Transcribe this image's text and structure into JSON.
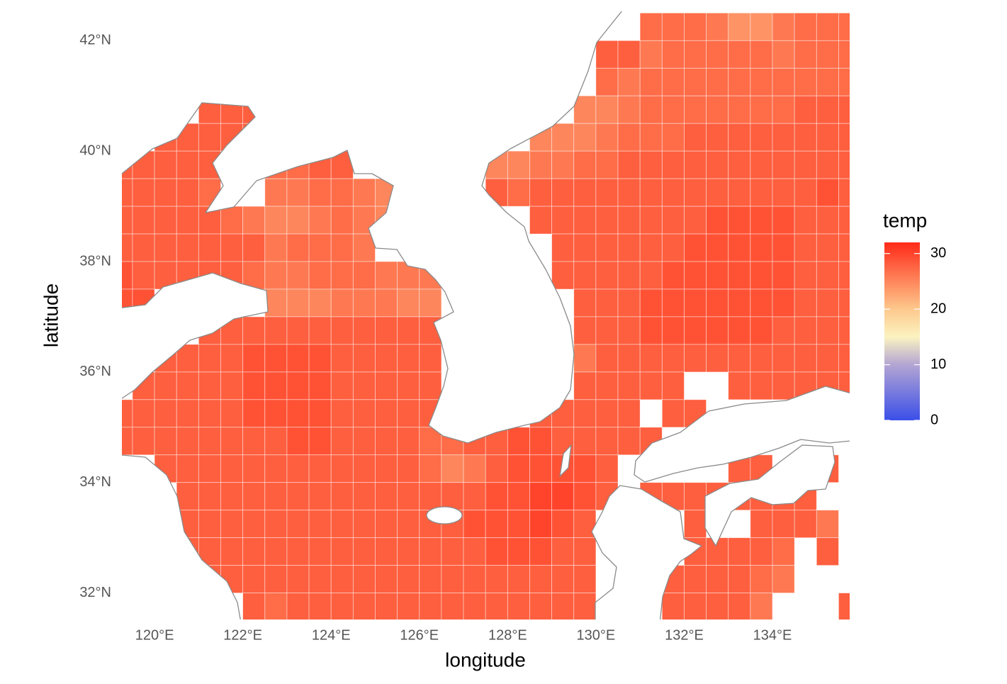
{
  "chart_data": {
    "type": "heatmap",
    "x_label": "longitude",
    "y_label": "latitude",
    "xlim": [
      119.26,
      135.75
    ],
    "ylim": [
      31.52,
      42.53
    ],
    "xticks": [
      {
        "value": 120,
        "label": "120°E"
      },
      {
        "value": 122,
        "label": "122°E"
      },
      {
        "value": 124,
        "label": "124°E"
      },
      {
        "value": 126,
        "label": "126°E"
      },
      {
        "value": 128,
        "label": "128°E"
      },
      {
        "value": 130,
        "label": "130°E"
      },
      {
        "value": 132,
        "label": "132°E"
      },
      {
        "value": 134,
        "label": "134°E"
      }
    ],
    "yticks": [
      {
        "value": 32,
        "label": "32°N"
      },
      {
        "value": 34,
        "label": "34°N"
      },
      {
        "value": 36,
        "label": "36°N"
      },
      {
        "value": 38,
        "label": "38°N"
      },
      {
        "value": 40,
        "label": "40°N"
      },
      {
        "value": 42,
        "label": "42°N"
      }
    ],
    "x": [
      119.25,
      119.75,
      120.25,
      120.75,
      121.25,
      121.75,
      122.25,
      122.75,
      123.25,
      123.75,
      124.25,
      124.75,
      125.25,
      125.75,
      126.25,
      126.75,
      127.25,
      127.75,
      128.25,
      128.75,
      129.25,
      129.75,
      130.25,
      130.75,
      131.25,
      131.75,
      132.25,
      132.75,
      133.25,
      133.75,
      134.25,
      134.75,
      135.25,
      135.75
    ],
    "y": [
      42.25,
      41.75,
      41.25,
      40.75,
      40.25,
      39.75,
      39.25,
      38.75,
      38.25,
      37.75,
      37.25,
      36.75,
      36.25,
      35.75,
      35.25,
      34.75,
      34.25,
      33.75,
      33.25,
      32.75,
      32.25,
      31.75
    ],
    "values": [
      [
        null,
        null,
        null,
        null,
        null,
        null,
        null,
        null,
        null,
        null,
        null,
        null,
        null,
        null,
        null,
        null,
        null,
        null,
        null,
        null,
        null,
        null,
        null,
        null,
        27,
        27,
        27,
        26,
        24,
        24,
        26,
        27,
        27,
        27
      ],
      [
        null,
        null,
        null,
        null,
        null,
        null,
        null,
        null,
        null,
        null,
        null,
        null,
        null,
        null,
        null,
        null,
        null,
        null,
        null,
        null,
        null,
        null,
        28,
        28,
        26,
        27,
        27,
        27,
        27,
        27,
        26,
        27,
        27,
        27
      ],
      [
        null,
        null,
        null,
        null,
        null,
        null,
        null,
        null,
        null,
        null,
        null,
        null,
        null,
        null,
        null,
        null,
        null,
        null,
        null,
        null,
        null,
        null,
        27,
        26,
        27,
        27,
        27,
        27,
        27,
        27,
        27,
        27,
        27,
        27
      ],
      [
        null,
        null,
        null,
        null,
        28,
        28,
        28,
        null,
        null,
        null,
        null,
        null,
        null,
        null,
        null,
        null,
        null,
        null,
        null,
        null,
        null,
        25,
        25,
        26,
        27,
        27,
        27,
        27,
        27,
        27,
        27,
        28,
        28,
        28
      ],
      [
        null,
        null,
        28,
        28,
        28,
        28,
        28,
        null,
        null,
        null,
        null,
        null,
        null,
        null,
        null,
        null,
        null,
        null,
        null,
        25,
        25,
        25,
        26,
        27,
        27,
        27,
        28,
        28,
        28,
        28,
        28,
        28,
        28,
        28
      ],
      [
        28,
        28,
        28,
        28,
        28,
        null,
        null,
        27,
        27,
        28,
        28,
        null,
        null,
        null,
        null,
        null,
        null,
        25,
        25,
        26,
        26,
        27,
        27,
        28,
        28,
        28,
        28,
        28,
        28,
        28,
        28,
        28,
        28,
        28
      ],
      [
        28,
        28,
        28,
        28,
        27,
        null,
        null,
        26,
        26,
        27,
        27,
        26,
        25,
        null,
        null,
        null,
        null,
        28,
        27,
        28,
        28,
        28,
        28,
        28,
        28,
        28,
        28,
        28,
        28,
        28,
        28,
        28,
        29,
        28
      ],
      [
        28,
        28,
        28,
        28,
        28,
        27,
        26,
        25,
        25,
        26,
        27,
        26,
        25,
        null,
        null,
        null,
        null,
        null,
        null,
        28,
        28,
        28,
        28,
        28,
        28,
        28,
        28,
        29,
        29,
        29,
        29,
        28,
        28,
        28
      ],
      [
        28,
        28,
        28,
        28,
        28,
        28,
        28,
        26,
        27,
        27,
        27,
        26,
        null,
        null,
        null,
        null,
        null,
        null,
        null,
        null,
        28,
        28,
        28,
        28,
        28,
        28,
        29,
        29,
        29,
        29,
        29,
        28,
        28,
        28
      ],
      [
        29,
        28,
        28,
        28,
        28,
        28,
        27,
        26,
        26,
        27,
        27,
        27,
        26,
        26,
        26,
        null,
        null,
        null,
        null,
        null,
        28,
        28,
        28,
        28,
        28,
        29,
        29,
        29,
        29,
        29,
        29,
        28,
        28,
        28
      ],
      [
        29,
        29,
        null,
        null,
        null,
        null,
        null,
        25,
        25,
        25,
        26,
        26,
        26,
        25,
        25,
        null,
        null,
        null,
        null,
        null,
        null,
        28,
        28,
        28,
        29,
        29,
        29,
        29,
        29,
        29,
        29,
        28,
        28,
        28
      ],
      [
        null,
        null,
        null,
        null,
        28,
        28,
        28,
        28,
        28,
        28,
        28,
        28,
        28,
        28,
        28,
        null,
        null,
        null,
        null,
        null,
        null,
        28,
        28,
        28,
        29,
        29,
        29,
        29,
        29,
        29,
        28,
        28,
        28,
        28
      ],
      [
        null,
        null,
        28,
        28,
        28,
        28,
        29,
        29,
        29,
        29,
        28,
        28,
        28,
        28,
        28,
        null,
        null,
        null,
        null,
        null,
        null,
        26,
        28,
        28,
        28,
        28,
        28,
        28,
        28,
        28,
        28,
        28,
        28,
        28
      ],
      [
        null,
        28,
        28,
        28,
        28,
        28,
        29,
        29,
        29,
        29,
        28,
        28,
        28,
        28,
        28,
        null,
        null,
        null,
        null,
        null,
        null,
        28,
        28,
        28,
        28,
        28,
        null,
        null,
        28,
        28,
        28,
        28,
        28,
        28
      ],
      [
        28,
        28,
        28,
        28,
        28,
        28,
        29,
        29,
        29,
        29,
        28,
        28,
        28,
        28,
        28,
        null,
        null,
        null,
        null,
        28,
        28,
        28,
        28,
        28,
        null,
        28,
        28,
        null,
        null,
        null,
        null,
        null,
        null,
        null
      ],
      [
        28,
        28,
        28,
        28,
        28,
        28,
        28,
        28,
        29,
        29,
        28,
        28,
        28,
        28,
        27,
        27,
        28,
        28,
        29,
        29,
        28,
        28,
        28,
        28,
        28,
        null,
        null,
        null,
        null,
        null,
        null,
        null,
        null,
        null
      ],
      [
        null,
        null,
        28,
        28,
        28,
        28,
        28,
        28,
        28,
        28,
        28,
        28,
        28,
        28,
        27,
        25,
        26,
        28,
        29,
        29,
        29,
        29,
        28,
        null,
        null,
        null,
        null,
        null,
        28,
        28,
        null,
        28,
        28,
        null
      ],
      [
        null,
        null,
        null,
        28,
        28,
        28,
        28,
        28,
        28,
        28,
        28,
        28,
        28,
        28,
        28,
        28,
        28,
        29,
        29,
        30,
        30,
        29,
        28,
        null,
        28,
        28,
        28,
        28,
        28,
        28,
        28,
        28,
        null,
        null
      ],
      [
        null,
        null,
        null,
        28,
        28,
        28,
        28,
        28,
        28,
        28,
        28,
        28,
        28,
        28,
        28,
        28,
        29,
        29,
        29,
        30,
        29,
        28,
        null,
        null,
        null,
        null,
        28,
        null,
        null,
        28,
        28,
        28,
        26,
        null
      ],
      [
        null,
        null,
        null,
        28,
        28,
        28,
        28,
        28,
        28,
        28,
        28,
        28,
        28,
        28,
        28,
        28,
        28,
        29,
        29,
        29,
        28,
        28,
        null,
        null,
        null,
        null,
        28,
        28,
        28,
        28,
        27,
        null,
        28,
        null
      ],
      [
        null,
        null,
        null,
        null,
        28,
        28,
        28,
        28,
        28,
        28,
        28,
        28,
        28,
        28,
        28,
        28,
        28,
        28,
        28,
        28,
        28,
        28,
        null,
        null,
        null,
        28,
        28,
        28,
        28,
        27,
        26,
        null,
        null,
        null
      ],
      [
        null,
        null,
        null,
        null,
        null,
        null,
        28,
        27,
        28,
        28,
        28,
        28,
        28,
        28,
        28,
        28,
        28,
        28,
        28,
        28,
        28,
        28,
        null,
        null,
        null,
        28,
        28,
        28,
        28,
        26,
        null,
        null,
        null,
        28
      ]
    ],
    "colorbar": {
      "title": "temp",
      "limits": [
        0,
        32
      ],
      "ticks": [
        0,
        10,
        20,
        30
      ],
      "color_stops": [
        {
          "value": 0,
          "color": "#3b4fe8"
        },
        {
          "value": 10,
          "color": "#b3a5d3"
        },
        {
          "value": 15,
          "color": "#fbf3c1"
        },
        {
          "value": 20,
          "color": "#fdc88c"
        },
        {
          "value": 32,
          "color": "#ff2a18"
        }
      ]
    }
  }
}
